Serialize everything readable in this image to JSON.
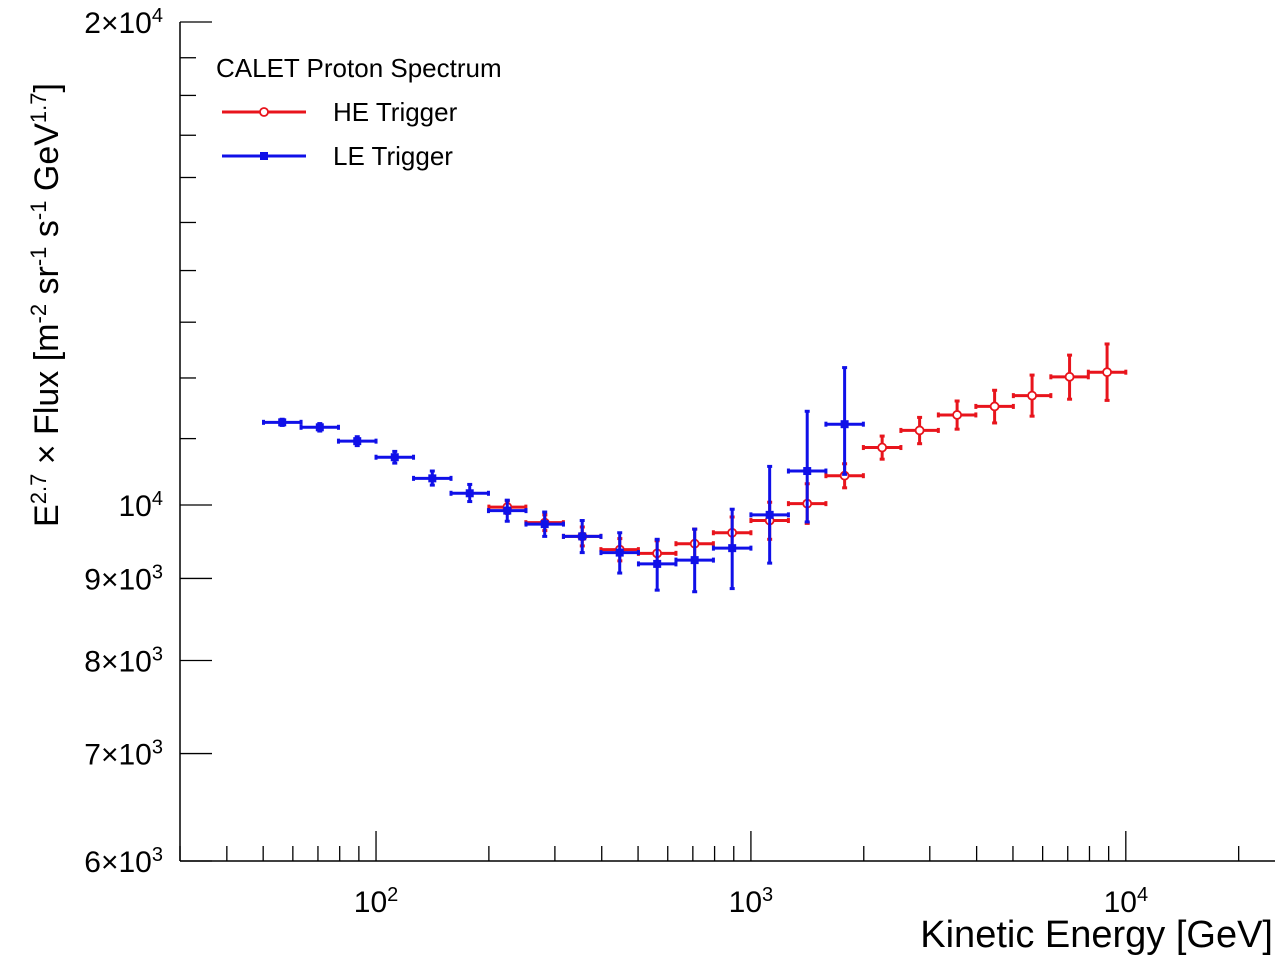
{
  "chart_data": {
    "type": "scatter",
    "title": "",
    "xlabel": "Kinetic Energy [GeV]",
    "ylabel": "E^{2.7} × Flux [m^{-2} sr^{-1} s^{-1} GeV^{1.7}]",
    "ylabel_parts": {
      "E": "E",
      "e_exp": "2.7",
      "times_flux": " × Flux [m",
      "m_exp": "-2",
      "sr": " sr",
      "sr_exp": "-1",
      "s": " s",
      "s_exp": "-1",
      "gev": " GeV",
      "gev_exp": "1.7",
      "close": "]"
    },
    "xscale": "log",
    "yscale": "log",
    "xlim": [
      30,
      25000
    ],
    "ylim": [
      6000,
      20000
    ],
    "grid": false,
    "x_ticks": [
      {
        "value": 100,
        "mantissa": "10",
        "exp": "2"
      },
      {
        "value": 1000,
        "mantissa": "10",
        "exp": "3"
      },
      {
        "value": 10000,
        "mantissa": "10",
        "exp": "4"
      }
    ],
    "y_ticks": [
      {
        "value": 6000,
        "mantissa": "6×10",
        "exp": "3"
      },
      {
        "value": 7000,
        "mantissa": "7×10",
        "exp": "3"
      },
      {
        "value": 8000,
        "mantissa": "8×10",
        "exp": "3"
      },
      {
        "value": 9000,
        "mantissa": "9×10",
        "exp": "3"
      },
      {
        "value": 10000,
        "mantissa": "10",
        "exp": "4"
      },
      {
        "value": 20000,
        "mantissa": "2×10",
        "exp": "4"
      }
    ],
    "legend": {
      "position": "top-left",
      "header": "CALET Proton Spectrum",
      "entries": [
        {
          "series": 0,
          "label": "HE Trigger"
        },
        {
          "series": 1,
          "label": "LE Trigger"
        }
      ]
    },
    "series": [
      {
        "name": "HE Trigger",
        "color": "#e8141c",
        "marker": "open-circle",
        "points": [
          {
            "x": 224,
            "y": 9970,
            "xlo": 200,
            "xhi": 251,
            "ylo": 9880,
            "yhi": 10060
          },
          {
            "x": 282,
            "y": 9750,
            "xlo": 251,
            "xhi": 316,
            "ylo": 9640,
            "yhi": 9860
          },
          {
            "x": 355,
            "y": 9560,
            "xlo": 316,
            "xhi": 398,
            "ylo": 9430,
            "yhi": 9690
          },
          {
            "x": 447,
            "y": 9380,
            "xlo": 398,
            "xhi": 501,
            "ylo": 9230,
            "yhi": 9530
          },
          {
            "x": 562,
            "y": 9330,
            "xlo": 501,
            "xhi": 631,
            "ylo": 9160,
            "yhi": 9500
          },
          {
            "x": 708,
            "y": 9460,
            "xlo": 631,
            "xhi": 794,
            "ylo": 9260,
            "yhi": 9660
          },
          {
            "x": 891,
            "y": 9610,
            "xlo": 794,
            "xhi": 1000,
            "ylo": 9390,
            "yhi": 9830
          },
          {
            "x": 1122,
            "y": 9780,
            "xlo": 1000,
            "xhi": 1259,
            "ylo": 9520,
            "yhi": 10040
          },
          {
            "x": 1413,
            "y": 10020,
            "xlo": 1259,
            "xhi": 1585,
            "ylo": 9740,
            "yhi": 10310
          },
          {
            "x": 1778,
            "y": 10430,
            "xlo": 1585,
            "xhi": 1995,
            "ylo": 10250,
            "yhi": 10610
          },
          {
            "x": 2239,
            "y": 10860,
            "xlo": 1995,
            "xhi": 2512,
            "ylo": 10680,
            "yhi": 11040
          },
          {
            "x": 2818,
            "y": 11130,
            "xlo": 2512,
            "xhi": 3162,
            "ylo": 10920,
            "yhi": 11340
          },
          {
            "x": 3548,
            "y": 11380,
            "xlo": 3162,
            "xhi": 3981,
            "ylo": 11150,
            "yhi": 11610
          },
          {
            "x": 4467,
            "y": 11520,
            "xlo": 3981,
            "xhi": 5012,
            "ylo": 11250,
            "yhi": 11790
          },
          {
            "x": 5623,
            "y": 11700,
            "xlo": 5012,
            "xhi": 6310,
            "ylo": 11360,
            "yhi": 12050
          },
          {
            "x": 7079,
            "y": 12020,
            "xlo": 6310,
            "xhi": 7943,
            "ylo": 11640,
            "yhi": 12400
          },
          {
            "x": 8913,
            "y": 12100,
            "xlo": 7943,
            "xhi": 10000,
            "ylo": 11620,
            "yhi": 12600
          }
        ]
      },
      {
        "name": "LE Trigger",
        "color": "#1010e8",
        "marker": "filled-square",
        "points": [
          {
            "x": 56.2,
            "y": 11260,
            "xlo": 50.1,
            "xhi": 63.1,
            "ylo": 11210,
            "yhi": 11310
          },
          {
            "x": 70.8,
            "y": 11180,
            "xlo": 63.1,
            "xhi": 79.4,
            "ylo": 11120,
            "yhi": 11240
          },
          {
            "x": 89.1,
            "y": 10960,
            "xlo": 79.4,
            "xhi": 100,
            "ylo": 10890,
            "yhi": 11030
          },
          {
            "x": 112.2,
            "y": 10710,
            "xlo": 100,
            "xhi": 125.9,
            "ylo": 10620,
            "yhi": 10800
          },
          {
            "x": 141.3,
            "y": 10390,
            "xlo": 125.9,
            "xhi": 158.5,
            "ylo": 10290,
            "yhi": 10500
          },
          {
            "x": 177.8,
            "y": 10170,
            "xlo": 158.5,
            "xhi": 199.5,
            "ylo": 10050,
            "yhi": 10300
          },
          {
            "x": 223.9,
            "y": 9920,
            "xlo": 199.5,
            "xhi": 251.2,
            "ylo": 9770,
            "yhi": 10070
          },
          {
            "x": 281.8,
            "y": 9730,
            "xlo": 251.2,
            "xhi": 316.2,
            "ylo": 9560,
            "yhi": 9900
          },
          {
            "x": 354.8,
            "y": 9560,
            "xlo": 316.2,
            "xhi": 398.1,
            "ylo": 9340,
            "yhi": 9780
          },
          {
            "x": 446.7,
            "y": 9340,
            "xlo": 398.1,
            "xhi": 501.2,
            "ylo": 9070,
            "yhi": 9610
          },
          {
            "x": 562.3,
            "y": 9190,
            "xlo": 501.2,
            "xhi": 631,
            "ylo": 8850,
            "yhi": 9520
          },
          {
            "x": 707.9,
            "y": 9240,
            "xlo": 631,
            "xhi": 794.3,
            "ylo": 8830,
            "yhi": 9660
          },
          {
            "x": 891.3,
            "y": 9400,
            "xlo": 794.3,
            "xhi": 1000,
            "ylo": 8870,
            "yhi": 9940
          },
          {
            "x": 1122,
            "y": 9860,
            "xlo": 1000,
            "xhi": 1259,
            "ylo": 9200,
            "yhi": 10570
          },
          {
            "x": 1413,
            "y": 10500,
            "xlo": 1259,
            "xhi": 1585,
            "ylo": 9760,
            "yhi": 11440
          },
          {
            "x": 1778,
            "y": 11230,
            "xlo": 1585,
            "xhi": 1995,
            "ylo": 10450,
            "yhi": 12180
          }
        ]
      }
    ]
  }
}
